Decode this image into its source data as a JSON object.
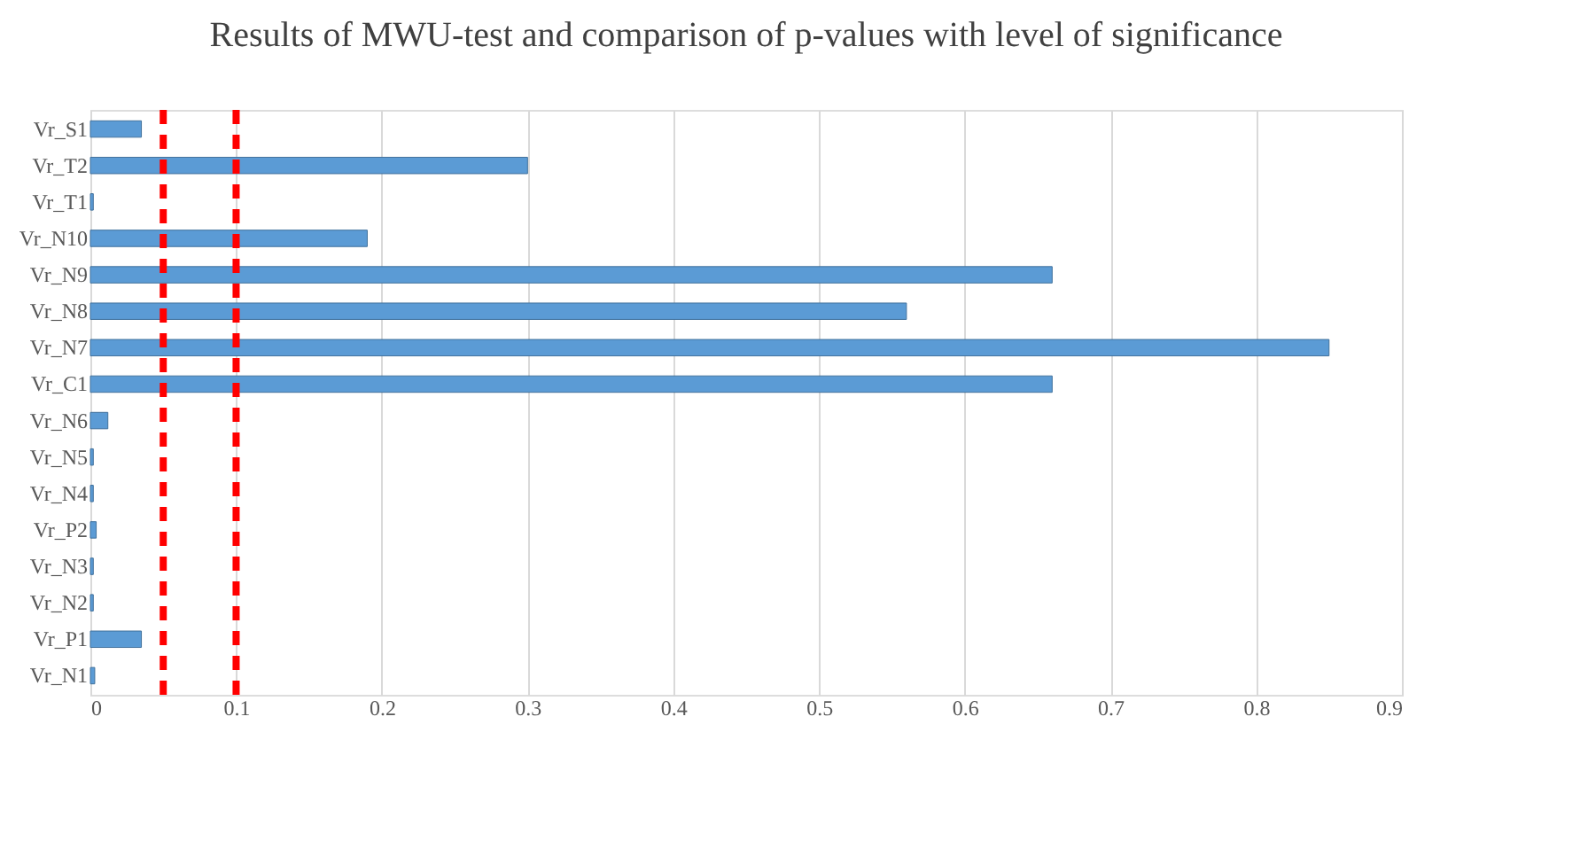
{
  "chart_data": {
    "type": "bar",
    "orientation": "horizontal",
    "title": "Results of MWU-test and comparison of p-values with level of significance",
    "categories": [
      "Vr_S1",
      "Vr_T2",
      "Vr_T1",
      "Vr_N10",
      "Vr_N9",
      "Vr_N8",
      "Vr_N7",
      "Vr_C1",
      "Vr_N6",
      "Vr_N5",
      "Vr_N4",
      "Vr_P2",
      "Vr_N3",
      "Vr_N2",
      "Vr_P1",
      "Vr_N1"
    ],
    "values": [
      0.035,
      0.3,
      0.002,
      0.19,
      0.66,
      0.56,
      0.85,
      0.66,
      0.012,
      0.002,
      0.002,
      0.004,
      0.002,
      0.002,
      0.035,
      0.003
    ],
    "color": "#5b9bd5",
    "xlim": [
      0,
      0.9
    ],
    "xticks": [
      0,
      0.1,
      0.2,
      0.3,
      0.4,
      0.5,
      0.6,
      0.7,
      0.8,
      0.9
    ],
    "grid": "x",
    "ref_lines": [
      {
        "axis": "x",
        "value": 0.05,
        "color": "#ff0000",
        "line_style": "dashed"
      },
      {
        "axis": "x",
        "value": 0.1,
        "color": "#ff0000",
        "line_style": "dashed"
      }
    ]
  }
}
